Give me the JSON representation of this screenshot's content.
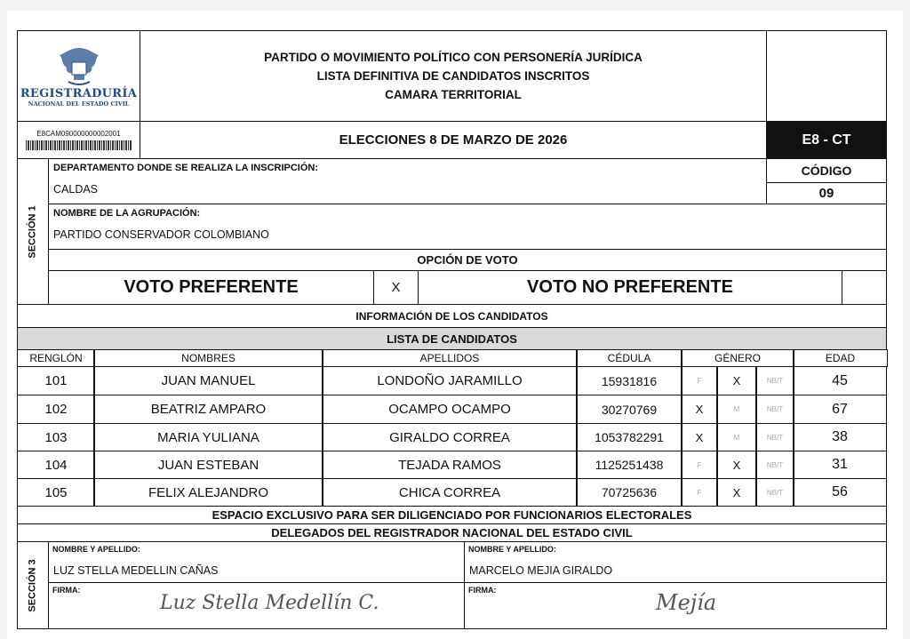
{
  "header": {
    "logo_text": "REGISTRADURÍA",
    "logo_subtext": "NACIONAL DEL ESTADO CIVIL",
    "title_lines": [
      "PARTIDO O MOVIMIENTO POLÍTICO CON PERSONERÍA JURÍDICA",
      "LISTA DEFINITIVA DE CANDIDATOS INSCRITOS",
      "CAMARA TERRITORIAL"
    ],
    "barcode_text": "E8CAM090000000002001",
    "election": "ELECCIONES 8 DE MARZO DE 2026",
    "form_code": "E8 - CT"
  },
  "section1": {
    "label": "SECCIÓN 1",
    "department_label": "DEPARTAMENTO DONDE SE REALIZA LA INSCRIPCIÓN:",
    "department": "CALDAS",
    "code_label": "CÓDIGO",
    "code": "09",
    "group_label": "NOMBRE DE LA AGRUPACIÓN:",
    "group": "PARTIDO CONSERVADOR COLOMBIANO",
    "vote_option_label": "OPCIÓN DE VOTO",
    "preferente": "VOTO PREFERENTE",
    "preferente_mark": "X",
    "no_preferente": "VOTO NO PREFERENTE",
    "no_preferente_mark": ""
  },
  "candidates": {
    "info_title": "INFORMACIÓN DE LOS CANDIDATOS",
    "list_title": "LISTA DE CANDIDATOS",
    "columns": [
      "RENGLÓN",
      "NOMBRES",
      "APELLIDOS",
      "CÉDULA",
      "GÉNERO",
      "EDAD"
    ],
    "rows": [
      {
        "renglon": "101",
        "nombres": "JUAN MANUEL",
        "apellidos": "LONDOÑO JARAMILLO",
        "cedula": "15931816",
        "f": "F",
        "m": "X",
        "nbt": "NB/T",
        "edad": "45"
      },
      {
        "renglon": "102",
        "nombres": "BEATRIZ AMPARO",
        "apellidos": "OCAMPO OCAMPO",
        "cedula": "30270769",
        "f": "X",
        "m": "M",
        "nbt": "NB/T",
        "edad": "67"
      },
      {
        "renglon": "103",
        "nombres": "MARIA YULIANA",
        "apellidos": "GIRALDO CORREA",
        "cedula": "1053782291",
        "f": "X",
        "m": "M",
        "nbt": "NB/T",
        "edad": "38"
      },
      {
        "renglon": "104",
        "nombres": "JUAN ESTEBAN",
        "apellidos": "TEJADA RAMOS",
        "cedula": "1125251438",
        "f": "F",
        "m": "X",
        "nbt": "NB/T",
        "edad": "31"
      },
      {
        "renglon": "105",
        "nombres": "FELIX ALEJANDRO",
        "apellidos": "CHICA CORREA",
        "cedula": "70725636",
        "f": "F",
        "m": "X",
        "nbt": "NB/T",
        "edad": "56"
      }
    ]
  },
  "section3": {
    "label": "SECCIÓN 3",
    "exclusive_title": "ESPACIO EXCLUSIVO PARA SER DILIGENCIADO POR FUNCIONARIOS ELECTORALES",
    "delegates_title": "DELEGADOS DEL REGISTRADOR NACIONAL DEL ESTADO CIVIL",
    "name_label": "NOMBRE Y APELLIDO:",
    "signature_label": "FIRMA:",
    "delegate1": "LUZ STELLA MEDELLIN CAÑAS",
    "delegate2": "MARCELO  MEJIA GIRALDO",
    "signature1": "Luz Stella Medellín C.",
    "signature2": "Mejía"
  }
}
